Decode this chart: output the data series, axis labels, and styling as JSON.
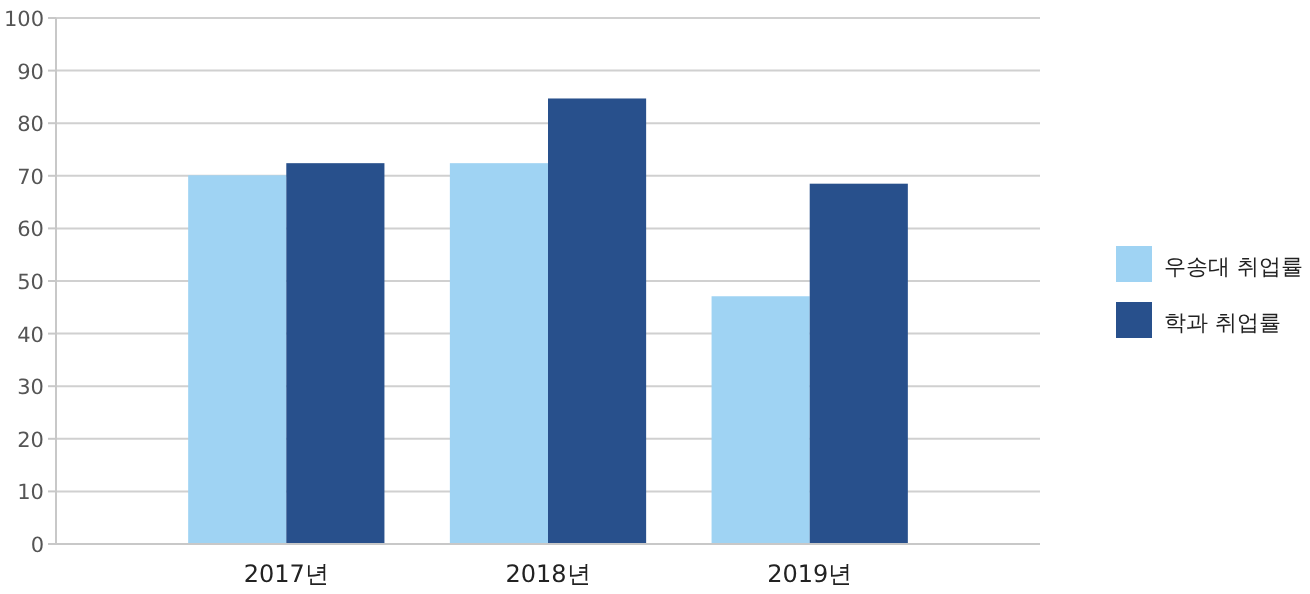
{
  "chart_data": {
    "type": "bar",
    "categories": [
      "2017년",
      "2018년",
      "2019년"
    ],
    "series": [
      {
        "name": "우송대 취업률",
        "color": "#9fd3f3",
        "values": [
          70.1,
          72.4,
          47.1
        ]
      },
      {
        "name": "학과 취업률",
        "color": "#28508c",
        "values": [
          72.4,
          84.7,
          68.5
        ]
      }
    ],
    "ylim": [
      0,
      100
    ],
    "yticks": [
      0,
      10,
      20,
      30,
      40,
      50,
      60,
      70,
      80,
      90,
      100
    ],
    "grid": "y",
    "legend": "right"
  }
}
